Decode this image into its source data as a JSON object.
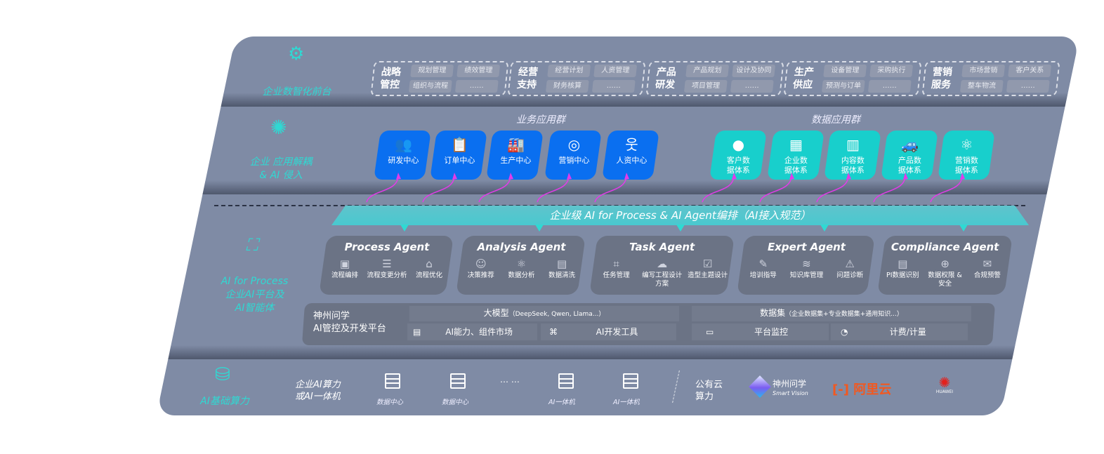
{
  "layers": {
    "front": "企业数智化前台",
    "apps": [
      "企业 应用解耦",
      "& AI 侵入"
    ],
    "ai": [
      "AI for Process",
      "企业AI平台及",
      "AI智能体"
    ],
    "infra": "AI基础算力"
  },
  "front_groups": [
    {
      "title": "战略管控",
      "items": [
        "规划管理",
        "绩效管理",
        "组织与流程",
        "……"
      ]
    },
    {
      "title": "经营支持",
      "items": [
        "经营计划",
        "人资管理",
        "财务核算",
        "……"
      ]
    },
    {
      "title": "产品研发",
      "items": [
        "产品规划",
        "设计及协同",
        "项目管理",
        "……"
      ]
    },
    {
      "title": "生产供应",
      "items": [
        "设备管理",
        "采购执行",
        "预测与订单",
        "……"
      ]
    },
    {
      "title": "营销服务",
      "items": [
        "市场营销",
        "客户关系",
        "整车物流",
        "……"
      ]
    }
  ],
  "business_apps": {
    "title": "业务应用群",
    "items": [
      {
        "label": "研发中心",
        "icon": "team-icon"
      },
      {
        "label": "订单中心",
        "icon": "clipboard-icon"
      },
      {
        "label": "生产中心",
        "icon": "factory-icon"
      },
      {
        "label": "营销中心",
        "icon": "target-icon"
      },
      {
        "label": "人资中心",
        "icon": "person-icon"
      }
    ]
  },
  "data_apps": {
    "title": "数据应用群",
    "items": [
      {
        "label": "客户数据体系",
        "icon": "user-icon"
      },
      {
        "label": "企业数据体系",
        "icon": "building-icon"
      },
      {
        "label": "内容数据体系",
        "icon": "books-icon"
      },
      {
        "label": "产品数据体系",
        "icon": "car-icon"
      },
      {
        "label": "营销数据体系",
        "icon": "atom-icon"
      }
    ]
  },
  "orchestration": "企业级 AI for Process & AI Agent编排（AI接入规范）",
  "agents": [
    {
      "name": "Process Agent",
      "items": [
        "流程编排",
        "流程变更分析",
        "流程优化"
      ]
    },
    {
      "name": "Analysis Agent",
      "items": [
        "决策推荐",
        "数据分析",
        "数据清洗"
      ]
    },
    {
      "name": "Task Agent",
      "items": [
        "任务管理",
        "编写工程设计方案",
        "造型主题设计"
      ]
    },
    {
      "name": "Expert Agent",
      "items": [
        "培训指导",
        "知识库管理",
        "问题诊断"
      ]
    },
    {
      "name": "Compliance Agent",
      "items": [
        "PI数据识别",
        "数据权限 & 安全",
        "合规预警"
      ]
    }
  ],
  "platform": {
    "title": [
      "神州问学",
      "AI管控及开发平台"
    ],
    "model": "大模型",
    "model_note": "（DeepSeek, Qwen, Llama...）",
    "dataset": "数据集",
    "dataset_note": "（企业数据集+专业数据集+通用知识...）",
    "tools": [
      "AI能力、组件市场",
      "AI开发工具",
      "平台监控",
      "计费/计量"
    ]
  },
  "infra": {
    "local_title": [
      "企业AI算力",
      "或AI一体机"
    ],
    "nodes": [
      "数据中心",
      "数据中心",
      "AI一体机",
      "AI一体机"
    ],
    "ellipsis": "… …",
    "cloud_title": [
      "公有云",
      "算力"
    ],
    "vendors": [
      {
        "name": "神州问学",
        "sub": "Smart Vision"
      },
      {
        "name": "阿里云"
      },
      {
        "name": "HUAWEI"
      }
    ],
    "colors": {
      "aliyun": "#f2581f",
      "huawei": "#e4201b"
    }
  },
  "colors": {
    "panel": "#7f8ba5",
    "blue": "#0a6ff0",
    "teal": "#18cfcc",
    "accent": "#2fd9d3",
    "arrow": "#e23ce8"
  }
}
